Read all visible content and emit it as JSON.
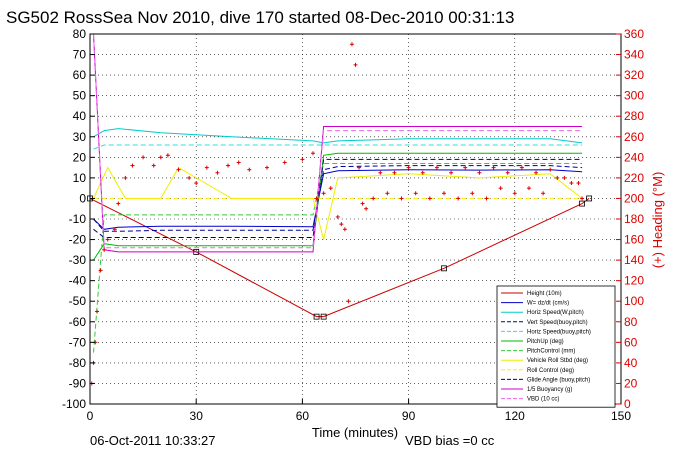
{
  "title": "SG502 RossSea Nov 2010, dive 170 started 08-Dec-2010 00:31:13",
  "footer": {
    "timestamp": "06-Oct-2011 10:33:27",
    "vbd_bias": "VBD bias =0 cc"
  },
  "chart_data": {
    "type": "line",
    "title": "SG502 RossSea Nov 2010, dive 170 started 08-Dec-2010 00:31:13",
    "xlabel": "Time (minutes)",
    "ylabel": "",
    "y2label": "(+) Heading (°M)",
    "xlim": [
      0,
      150
    ],
    "ylim": [
      -100,
      80
    ],
    "y2lim": [
      0,
      360
    ],
    "xticks": [
      0,
      30,
      60,
      90,
      120,
      150
    ],
    "yticks": [
      80,
      70,
      60,
      50,
      40,
      30,
      20,
      10,
      0,
      -10,
      -20,
      -30,
      -40,
      -50,
      -60,
      -70,
      -80,
      -90,
      -100
    ],
    "y2ticks": [
      360,
      340,
      320,
      300,
      280,
      260,
      240,
      220,
      200,
      180,
      160,
      140,
      120,
      100,
      80,
      60,
      40,
      20,
      0
    ],
    "grid": true,
    "legend_position": "bottom-right",
    "series": [
      {
        "name": "Height (10m)",
        "color": "#cc0000",
        "style": "solid",
        "x": [
          0,
          30,
          64,
          66,
          100,
          139,
          141
        ],
        "y": [
          0,
          -26,
          -57.5,
          -57.5,
          -34,
          -2.5,
          0
        ]
      },
      {
        "name": "W= dz/dt (cm/s)",
        "color": "#0000cc",
        "style": "solid",
        "x": [
          1,
          4,
          8,
          20,
          40,
          63,
          66,
          70,
          90,
          110,
          130,
          139
        ],
        "y": [
          -10,
          -15,
          -14,
          -13.5,
          -13.5,
          -13.8,
          12,
          13.5,
          14,
          13.8,
          14,
          13
        ]
      },
      {
        "name": "Horiz Speed(W,pitch)",
        "color": "#00cccc",
        "style": "solid",
        "x": [
          1,
          4,
          8,
          20,
          40,
          63,
          66,
          70,
          90,
          110,
          130,
          139
        ],
        "y": [
          30,
          33,
          34,
          32,
          30,
          28,
          27,
          28,
          29,
          29,
          29,
          27
        ]
      },
      {
        "name": "Vert Speed(buoy,pitch)",
        "color": "#000099",
        "style": "dashed",
        "x": [
          1,
          4,
          8,
          20,
          40,
          63,
          66,
          70,
          90,
          110,
          130,
          139
        ],
        "y": [
          -10,
          -16,
          -16,
          -15.5,
          -15.5,
          -15.5,
          14,
          15.5,
          16,
          16,
          16,
          15
        ]
      },
      {
        "name": "Horiz Speed(buoy,pitch)",
        "color": "#33dddd",
        "style": "dashed",
        "x": [
          1,
          4,
          8,
          20,
          40,
          63,
          66,
          70,
          90,
          110,
          130,
          139
        ],
        "y": [
          24,
          26,
          26,
          26,
          26,
          26,
          26,
          26,
          26,
          26,
          26,
          26
        ]
      },
      {
        "name": "PitchUp (deg)",
        "color": "#00bb00",
        "style": "solid",
        "x": [
          1,
          4,
          8,
          20,
          40,
          63,
          66,
          70,
          90,
          110,
          130,
          139
        ],
        "y": [
          -30,
          -22,
          -23,
          -23,
          -23,
          -23,
          21,
          22,
          22,
          22,
          22,
          22
        ]
      },
      {
        "name": "PitchControl (mm)",
        "color": "#33cc33",
        "style": "dashed",
        "x": [
          1,
          4,
          8,
          20,
          40,
          63,
          66,
          70,
          90,
          110,
          130,
          139
        ],
        "y": [
          -75,
          -8,
          -8,
          -8,
          -8,
          -8,
          17,
          17,
          17,
          17,
          17,
          17
        ]
      },
      {
        "name": "Vehicle Roll Stbd (deg)",
        "color": "#eeee00",
        "style": "solid",
        "x": [
          1,
          5,
          10,
          20,
          25,
          40,
          63,
          66,
          70,
          90,
          110,
          130,
          139
        ],
        "y": [
          0,
          15,
          0,
          0,
          15,
          0,
          0,
          -20,
          10,
          12,
          10,
          12,
          0
        ]
      },
      {
        "name": "Roll Control (deg)",
        "color": "#ffee00",
        "style": "dashed",
        "x": [
          1,
          20,
          40,
          63,
          66,
          90,
          139
        ],
        "y": [
          0,
          0,
          0,
          0,
          0,
          0,
          0
        ]
      },
      {
        "name": "Glide Angle (buoy,pitch)",
        "color": "#000066",
        "style": "dashed",
        "x": [
          1,
          4,
          8,
          20,
          40,
          63,
          66,
          70,
          90,
          110,
          130,
          139
        ],
        "y": [
          -15,
          -19,
          -19,
          -19,
          -19,
          -19,
          19,
          19,
          19,
          19,
          19,
          19
        ]
      },
      {
        "name": "1/5 Buoyancy (g)",
        "color": "#cc00cc",
        "style": "solid",
        "x": [
          1,
          4,
          8,
          20,
          40,
          63,
          66,
          70,
          90,
          110,
          130,
          139
        ],
        "y": [
          80,
          -25,
          -26,
          -26,
          -26,
          -26,
          35,
          35,
          35,
          35,
          35,
          35
        ]
      },
      {
        "name": "VBD (10 cc)",
        "color": "#ee66ee",
        "style": "dashed",
        "x": [
          1,
          4,
          8,
          20,
          40,
          63,
          66,
          70,
          90,
          110,
          130,
          139
        ],
        "y": [
          80,
          -24,
          -24,
          -24,
          -24,
          -24,
          33,
          33,
          33,
          33,
          33,
          33
        ]
      }
    ],
    "heading": {
      "name": "(+) Heading (°M)",
      "color": "#dd0000",
      "marker": "+",
      "x": [
        0.5,
        1,
        1.5,
        2,
        3,
        4,
        5,
        7,
        8,
        10,
        12,
        15,
        18,
        20,
        22,
        25,
        28,
        30,
        33,
        36,
        39,
        42,
        45,
        50,
        55,
        60,
        63,
        64,
        66,
        68,
        70,
        71,
        72,
        73,
        74,
        75,
        76,
        77,
        78,
        80,
        82,
        84,
        86,
        88,
        90,
        92,
        94,
        96,
        98,
        100,
        102,
        104,
        106,
        108,
        110,
        112,
        114,
        116,
        118,
        120,
        122,
        124,
        126,
        128,
        130,
        132,
        134,
        136,
        138,
        139
      ],
      "y": [
        20,
        40,
        60,
        90,
        130,
        150,
        160,
        170,
        195,
        220,
        232,
        240,
        232,
        240,
        242,
        228,
        220,
        215,
        230,
        225,
        232,
        235,
        228,
        230,
        235,
        238,
        244,
        200,
        205,
        210,
        182,
        175,
        170,
        100,
        350,
        330,
        230,
        195,
        190,
        200,
        225,
        205,
        225,
        200,
        230,
        205,
        225,
        200,
        230,
        205,
        225,
        200,
        230,
        205,
        225,
        200,
        230,
        210,
        225,
        205,
        230,
        210,
        225,
        205,
        228,
        220,
        220,
        215,
        215,
        200
      ]
    }
  }
}
